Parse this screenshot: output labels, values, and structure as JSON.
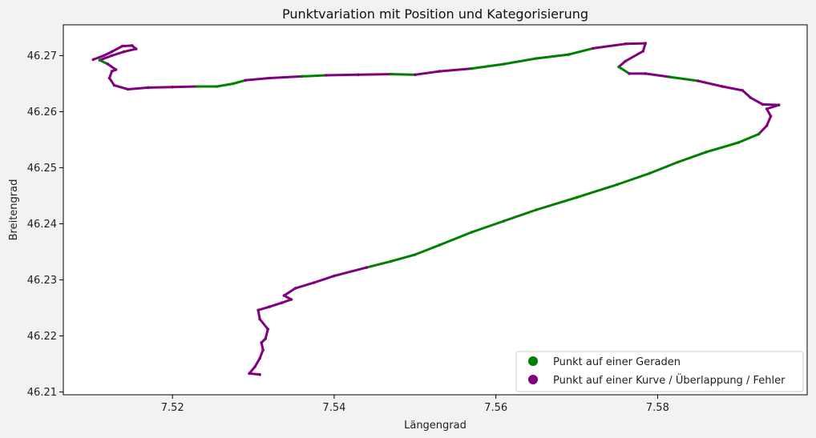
{
  "chart_data": {
    "type": "scatter",
    "title": "Punktvariation mit Position und Kategorisierung",
    "xlabel": "Längengrad",
    "ylabel": "Breitengrad",
    "xlim": [
      7.5065,
      7.5985
    ],
    "ylim": [
      46.2095,
      46.2755
    ],
    "xticks": [
      7.52,
      7.54,
      7.56,
      7.58
    ],
    "xtick_labels": [
      "7.52",
      "7.54",
      "7.56",
      "7.58"
    ],
    "yticks": [
      46.21,
      46.22,
      46.23,
      46.24,
      46.25,
      46.26,
      46.27
    ],
    "ytick_labels": [
      "46.21",
      "46.22",
      "46.23",
      "46.24",
      "46.25",
      "46.26",
      "46.27"
    ],
    "grid": false,
    "legend_position": "lower-right",
    "colors": {
      "straight": "#008000",
      "curve": "#800080"
    },
    "series": [
      {
        "name": "Punkt auf einer Geraden",
        "color": "#008000",
        "marker": "circle"
      },
      {
        "name": "Punkt auf einer Kurve / Überlappung / Fehler",
        "color": "#800080",
        "marker": "circle"
      }
    ],
    "track": [
      {
        "x": 7.5308,
        "y": 46.2131,
        "c": "curve"
      },
      {
        "x": 7.5295,
        "y": 46.2133,
        "c": "curve"
      },
      {
        "x": 7.5302,
        "y": 46.2145,
        "c": "curve"
      },
      {
        "x": 7.5308,
        "y": 46.216,
        "c": "curve"
      },
      {
        "x": 7.5312,
        "y": 46.2175,
        "c": "curve"
      },
      {
        "x": 7.531,
        "y": 46.2188,
        "c": "curve"
      },
      {
        "x": 7.5315,
        "y": 46.2195,
        "c": "curve"
      },
      {
        "x": 7.5318,
        "y": 46.2212,
        "c": "curve"
      },
      {
        "x": 7.5308,
        "y": 46.223,
        "c": "curve"
      },
      {
        "x": 7.5306,
        "y": 46.2246,
        "c": "curve"
      },
      {
        "x": 7.532,
        "y": 46.2252,
        "c": "curve"
      },
      {
        "x": 7.5335,
        "y": 46.2259,
        "c": "curve"
      },
      {
        "x": 7.5347,
        "y": 46.2265,
        "c": "curve"
      },
      {
        "x": 7.5338,
        "y": 46.2272,
        "c": "curve"
      },
      {
        "x": 7.5352,
        "y": 46.2285,
        "c": "curve"
      },
      {
        "x": 7.5375,
        "y": 46.2295,
        "c": "curve"
      },
      {
        "x": 7.54,
        "y": 46.2307,
        "c": "curve"
      },
      {
        "x": 7.544,
        "y": 46.2322,
        "c": "curve"
      },
      {
        "x": 7.547,
        "y": 46.2333,
        "c": "straight"
      },
      {
        "x": 7.55,
        "y": 46.2345,
        "c": "straight"
      },
      {
        "x": 7.553,
        "y": 46.2362,
        "c": "straight"
      },
      {
        "x": 7.557,
        "y": 46.2385,
        "c": "straight"
      },
      {
        "x": 7.561,
        "y": 46.2405,
        "c": "straight"
      },
      {
        "x": 7.565,
        "y": 46.2425,
        "c": "straight"
      },
      {
        "x": 7.57,
        "y": 46.2447,
        "c": "straight"
      },
      {
        "x": 7.575,
        "y": 46.247,
        "c": "straight"
      },
      {
        "x": 7.579,
        "y": 46.249,
        "c": "straight"
      },
      {
        "x": 7.5825,
        "y": 46.251,
        "c": "straight"
      },
      {
        "x": 7.586,
        "y": 46.2528,
        "c": "straight"
      },
      {
        "x": 7.59,
        "y": 46.2545,
        "c": "straight"
      },
      {
        "x": 7.5925,
        "y": 46.256,
        "c": "straight"
      },
      {
        "x": 7.5935,
        "y": 46.2575,
        "c": "curve"
      },
      {
        "x": 7.594,
        "y": 46.2592,
        "c": "curve"
      },
      {
        "x": 7.5935,
        "y": 46.2605,
        "c": "curve"
      },
      {
        "x": 7.595,
        "y": 46.2612,
        "c": "curve"
      },
      {
        "x": 7.593,
        "y": 46.2613,
        "c": "curve"
      },
      {
        "x": 7.5915,
        "y": 46.2625,
        "c": "curve"
      },
      {
        "x": 7.5905,
        "y": 46.2638,
        "c": "curve"
      },
      {
        "x": 7.588,
        "y": 46.2645,
        "c": "curve"
      },
      {
        "x": 7.585,
        "y": 46.2655,
        "c": "curve"
      },
      {
        "x": 7.5815,
        "y": 46.2662,
        "c": "straight"
      },
      {
        "x": 7.5785,
        "y": 46.2668,
        "c": "curve"
      },
      {
        "x": 7.5765,
        "y": 46.2668,
        "c": "curve"
      },
      {
        "x": 7.5752,
        "y": 46.268,
        "c": "straight"
      },
      {
        "x": 7.576,
        "y": 46.269,
        "c": "curve"
      },
      {
        "x": 7.5782,
        "y": 46.2708,
        "c": "curve"
      },
      {
        "x": 7.5785,
        "y": 46.2722,
        "c": "curve"
      },
      {
        "x": 7.576,
        "y": 46.2721,
        "c": "curve"
      },
      {
        "x": 7.572,
        "y": 46.2713,
        "c": "curve"
      },
      {
        "x": 7.569,
        "y": 46.2702,
        "c": "straight"
      },
      {
        "x": 7.565,
        "y": 46.2695,
        "c": "straight"
      },
      {
        "x": 7.561,
        "y": 46.2685,
        "c": "straight"
      },
      {
        "x": 7.557,
        "y": 46.2677,
        "c": "straight"
      },
      {
        "x": 7.553,
        "y": 46.2672,
        "c": "curve"
      },
      {
        "x": 7.55,
        "y": 46.2666,
        "c": "curve"
      },
      {
        "x": 7.547,
        "y": 46.2667,
        "c": "straight"
      },
      {
        "x": 7.543,
        "y": 46.2666,
        "c": "curve"
      },
      {
        "x": 7.539,
        "y": 46.2665,
        "c": "curve"
      },
      {
        "x": 7.536,
        "y": 46.2663,
        "c": "straight"
      },
      {
        "x": 7.532,
        "y": 46.266,
        "c": "curve"
      },
      {
        "x": 7.529,
        "y": 46.2656,
        "c": "curve"
      },
      {
        "x": 7.5275,
        "y": 46.265,
        "c": "straight"
      },
      {
        "x": 7.5255,
        "y": 46.2645,
        "c": "straight"
      },
      {
        "x": 7.523,
        "y": 46.2645,
        "c": "straight"
      },
      {
        "x": 7.52,
        "y": 46.2644,
        "c": "curve"
      },
      {
        "x": 7.517,
        "y": 46.2643,
        "c": "curve"
      },
      {
        "x": 7.5145,
        "y": 46.264,
        "c": "curve"
      },
      {
        "x": 7.5128,
        "y": 46.2647,
        "c": "curve"
      },
      {
        "x": 7.5122,
        "y": 46.266,
        "c": "curve"
      },
      {
        "x": 7.5125,
        "y": 46.2672,
        "c": "curve"
      },
      {
        "x": 7.513,
        "y": 46.2675,
        "c": "curve"
      },
      {
        "x": 7.512,
        "y": 46.2685,
        "c": "curve"
      },
      {
        "x": 7.511,
        "y": 46.2692,
        "c": "straight"
      },
      {
        "x": 7.5125,
        "y": 46.27,
        "c": "curve"
      },
      {
        "x": 7.514,
        "y": 46.2707,
        "c": "curve"
      },
      {
        "x": 7.5155,
        "y": 46.2712,
        "c": "curve"
      },
      {
        "x": 7.515,
        "y": 46.2718,
        "c": "curve"
      },
      {
        "x": 7.5138,
        "y": 46.2717,
        "c": "curve"
      },
      {
        "x": 7.5125,
        "y": 46.2707,
        "c": "curve"
      },
      {
        "x": 7.5115,
        "y": 46.27,
        "c": "curve"
      },
      {
        "x": 7.5102,
        "y": 46.2693,
        "c": "curve"
      }
    ]
  }
}
